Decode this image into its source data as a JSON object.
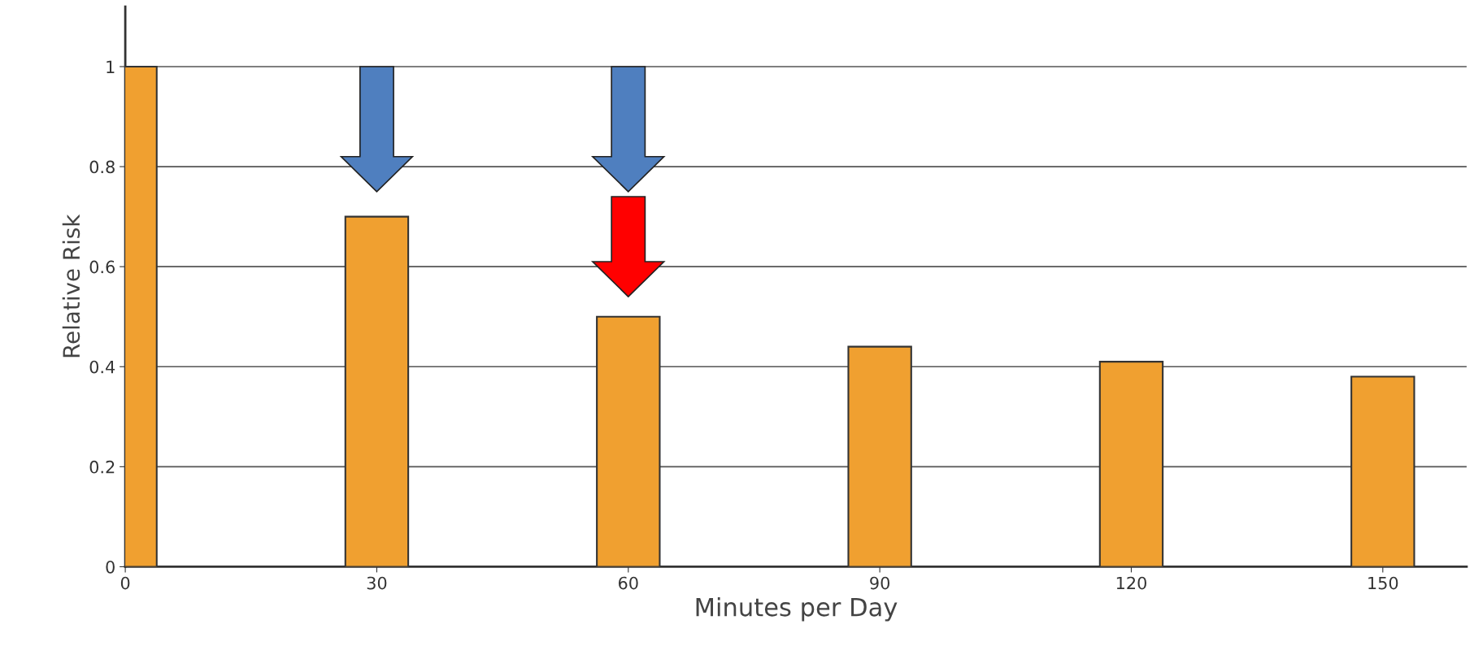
{
  "chart_data": {
    "type": "bar",
    "xlabel": "Minutes per Day",
    "ylabel": "Relative Risk",
    "x": [
      0,
      30,
      60,
      90,
      120,
      150
    ],
    "values": [
      1.0,
      0.7,
      0.5,
      0.44,
      0.41,
      0.38
    ],
    "color": "#f0a030",
    "xlim": [
      0,
      160
    ],
    "xticks": [
      0,
      30,
      60,
      90,
      120,
      150
    ],
    "ylim": [
      0,
      1.12
    ],
    "yticks": [
      0,
      0.2,
      0.4,
      0.6,
      0.8,
      1
    ],
    "grid": "y"
  }
}
